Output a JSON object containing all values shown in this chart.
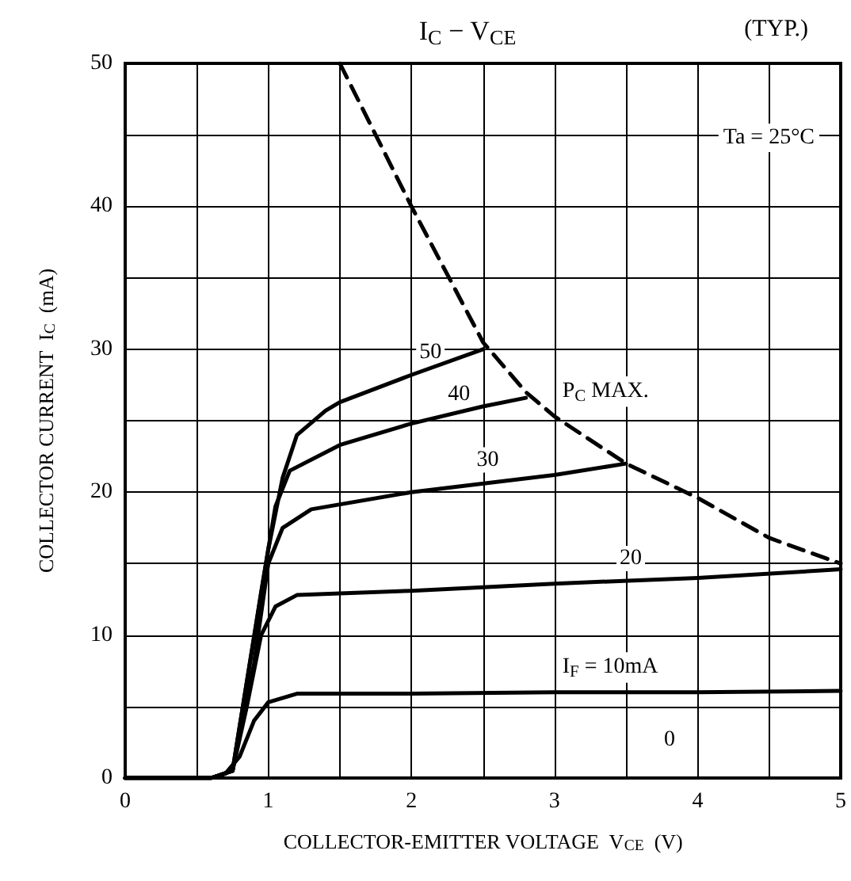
{
  "chart_data": {
    "type": "line",
    "title": "I$_{C}$ − V$_{CE}$",
    "subtitle": "(TYP.)",
    "xlabel": "COLLECTOR-EMITTER VOLTAGE  V$_{CE}$  (V)",
    "ylabel": "COLLECTOR CURRENT  I$_{C}$  (mA)",
    "xlim": [
      0,
      5
    ],
    "ylim": [
      0,
      50
    ],
    "xticks": [
      0,
      {
        "value": 0.5,
        "label": null
      },
      1,
      {
        "value": 1.5,
        "label": null
      },
      2,
      {
        "value": 2.5,
        "label": null
      },
      3,
      {
        "value": 3.5,
        "label": null
      },
      4,
      {
        "value": 4.5,
        "label": null
      },
      5
    ],
    "yticks": [
      0,
      {
        "value": 5,
        "label": null
      },
      10,
      {
        "value": 15,
        "label": null
      },
      20,
      {
        "value": 25,
        "label": null
      },
      30,
      {
        "value": 35,
        "label": null
      },
      40,
      {
        "value": 45,
        "label": null
      },
      50
    ],
    "grid": true,
    "marker": "none",
    "series": [
      {
        "color": "#000000",
        "line_style": "solid",
        "x": [
          0,
          0.6,
          0.7,
          0.8,
          0.9,
          1.0,
          1.2,
          2,
          3,
          4,
          5
        ],
        "values": [
          0,
          0,
          0.3,
          1.5,
          4,
          5.3,
          5.9,
          5.9,
          6,
          6,
          6.1
        ]
      },
      {
        "color": "#000000",
        "line_style": "solid",
        "x": [
          0,
          0.6,
          0.75,
          0.85,
          0.95,
          1.05,
          1.2,
          2,
          3,
          4,
          5
        ],
        "values": [
          0,
          0,
          0.5,
          5,
          10,
          12,
          12.8,
          13.1,
          13.6,
          14,
          14.6
        ]
      },
      {
        "color": "#000000",
        "line_style": "solid",
        "x": [
          0,
          0.6,
          0.75,
          0.9,
          1.0,
          1.1,
          1.3,
          2,
          3,
          3.5
        ],
        "values": [
          0,
          0,
          0.5,
          8,
          15,
          17.5,
          18.8,
          20,
          21.2,
          22
        ]
      },
      {
        "color": "#000000",
        "line_style": "solid",
        "x": [
          0,
          0.6,
          0.75,
          0.95,
          1.05,
          1.15,
          1.5,
          2,
          2.5,
          2.8
        ],
        "values": [
          0,
          0,
          0.5,
          13,
          19,
          21.5,
          23.3,
          24.8,
          26,
          26.6
        ]
      },
      {
        "color": "#000000",
        "line_style": "solid",
        "x": [
          0,
          0.6,
          0.75,
          1.0,
          1.1,
          1.2,
          1.4,
          1.5,
          2,
          2.5
        ],
        "values": [
          0,
          0,
          0.5,
          16,
          21,
          24,
          25.7,
          26.3,
          28.2,
          30
        ]
      },
      {
        "color": "#000000",
        "line_style": "dashed",
        "x": [
          1.5,
          2,
          2.5,
          2.8,
          3,
          3.5,
          4,
          4.5,
          5
        ],
        "values": [
          50,
          40,
          30.5,
          27,
          25.3,
          22,
          19.6,
          16.8,
          15
        ]
      }
    ],
    "annotations": [
      "Ta = 25°C",
      {
        "text": "P$_{C}$ MAX.",
        "x": 3,
        "y": 25.3
      },
      {
        "text": "50",
        "x": 2,
        "y": 28.2
      },
      {
        "text": "40",
        "x": 2.2,
        "y": 25.3
      },
      {
        "text": "30",
        "x": 2.4,
        "y": 20.7
      },
      {
        "text": "20",
        "x": 3.4,
        "y": 13.8
      },
      {
        "text": "I$_{F}$ = 10mA",
        "x": 3,
        "y": 6
      },
      "0"
    ]
  }
}
